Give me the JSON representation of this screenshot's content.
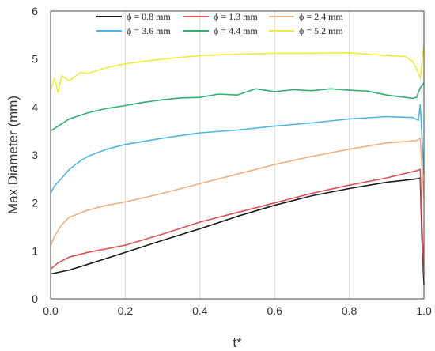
{
  "chart_data": {
    "type": "line",
    "title": "",
    "xlabel": "t*",
    "ylabel": "Max Diameter (mm)",
    "xlim": [
      0,
      1
    ],
    "ylim": [
      0,
      6
    ],
    "xticks": [
      "0.0",
      "0.2",
      "0.4",
      "0.6",
      "0.8",
      "1.0"
    ],
    "yticks": [
      "0",
      "1",
      "2",
      "3",
      "4",
      "5",
      "6"
    ],
    "grid": "vertical",
    "legend_position": "top",
    "series": [
      {
        "name": "ϕ = 0.8 mm",
        "color": "#1a1a1a",
        "x": [
          0.0,
          0.05,
          0.1,
          0.2,
          0.3,
          0.4,
          0.5,
          0.6,
          0.7,
          0.8,
          0.9,
          0.98,
          0.99,
          0.995,
          1.0
        ],
        "y": [
          0.52,
          0.6,
          0.72,
          0.97,
          1.22,
          1.46,
          1.72,
          1.95,
          2.15,
          2.3,
          2.43,
          2.5,
          2.52,
          1.2,
          0.3
        ]
      },
      {
        "name": "ϕ = 1.3 mm",
        "color": "#e0504f",
        "x": [
          0.0,
          0.02,
          0.05,
          0.1,
          0.2,
          0.3,
          0.4,
          0.5,
          0.6,
          0.7,
          0.8,
          0.9,
          0.98,
          0.99,
          0.995,
          1.0
        ],
        "y": [
          0.62,
          0.75,
          0.87,
          0.97,
          1.12,
          1.35,
          1.6,
          1.8,
          2.0,
          2.2,
          2.37,
          2.52,
          2.67,
          2.7,
          1.5,
          0.5
        ]
      },
      {
        "name": "ϕ = 2.4 mm",
        "color": "#f2b07c",
        "x": [
          0.0,
          0.01,
          0.03,
          0.05,
          0.1,
          0.15,
          0.2,
          0.3,
          0.4,
          0.5,
          0.6,
          0.7,
          0.8,
          0.9,
          0.98,
          0.99,
          1.0
        ],
        "y": [
          1.1,
          1.3,
          1.55,
          1.7,
          1.85,
          1.95,
          2.02,
          2.2,
          2.4,
          2.6,
          2.8,
          2.97,
          3.12,
          3.25,
          3.3,
          3.35,
          2.1
        ]
      },
      {
        "name": "ϕ = 3.6 mm",
        "color": "#4db8e8",
        "x": [
          0.0,
          0.01,
          0.03,
          0.05,
          0.08,
          0.1,
          0.15,
          0.2,
          0.3,
          0.4,
          0.5,
          0.6,
          0.7,
          0.8,
          0.9,
          0.97,
          0.985,
          0.99,
          1.0
        ],
        "y": [
          2.2,
          2.35,
          2.52,
          2.7,
          2.88,
          2.97,
          3.12,
          3.22,
          3.35,
          3.46,
          3.52,
          3.6,
          3.67,
          3.75,
          3.8,
          3.78,
          3.72,
          4.05,
          2.6
        ]
      },
      {
        "name": "ϕ = 4.4 mm",
        "color": "#2fb36b",
        "x": [
          0.0,
          0.01,
          0.03,
          0.05,
          0.1,
          0.15,
          0.2,
          0.25,
          0.3,
          0.35,
          0.4,
          0.45,
          0.5,
          0.55,
          0.6,
          0.65,
          0.7,
          0.75,
          0.8,
          0.85,
          0.9,
          0.95,
          0.97,
          0.98,
          0.99,
          1.0
        ],
        "y": [
          3.5,
          3.55,
          3.65,
          3.75,
          3.88,
          3.97,
          4.03,
          4.1,
          4.15,
          4.19,
          4.2,
          4.27,
          4.25,
          4.38,
          4.32,
          4.36,
          4.34,
          4.38,
          4.35,
          4.33,
          4.25,
          4.2,
          4.18,
          4.2,
          4.4,
          4.5
        ]
      },
      {
        "name": "ϕ = 5.2 mm",
        "color": "#f5ea3c",
        "x": [
          0.0,
          0.01,
          0.02,
          0.03,
          0.05,
          0.08,
          0.1,
          0.15,
          0.2,
          0.3,
          0.4,
          0.5,
          0.6,
          0.7,
          0.8,
          0.9,
          0.95,
          0.97,
          0.98,
          0.99,
          1.0
        ],
        "y": [
          4.35,
          4.6,
          4.3,
          4.65,
          4.55,
          4.72,
          4.7,
          4.82,
          4.9,
          5.0,
          5.07,
          5.1,
          5.12,
          5.12,
          5.13,
          5.07,
          5.05,
          4.95,
          4.8,
          4.6,
          5.3
        ]
      }
    ]
  }
}
